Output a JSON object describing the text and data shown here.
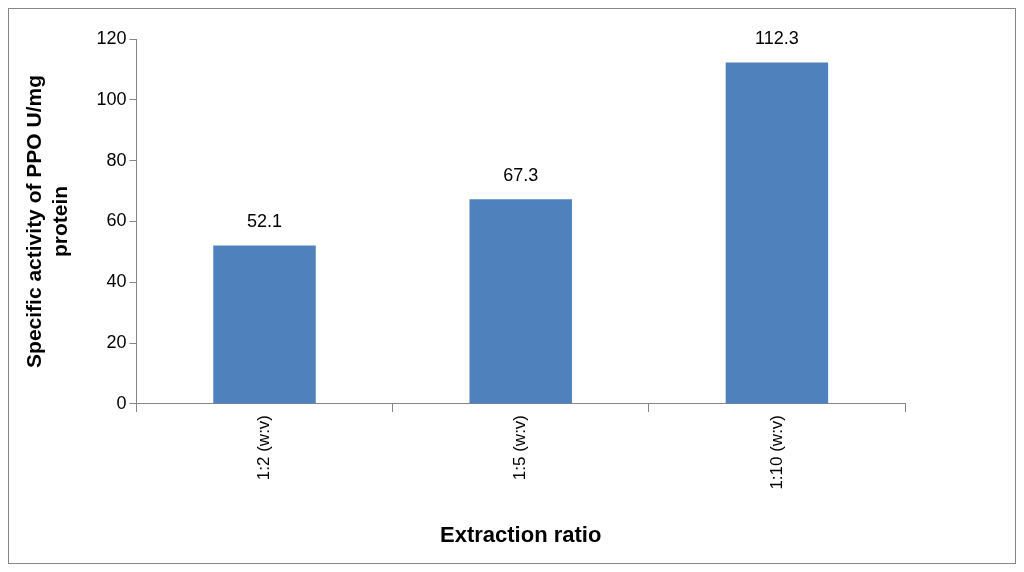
{
  "chart_data": {
    "type": "bar",
    "xlabel": "Extraction ratio",
    "ylabel": "Specific activity of PPO U/mg protein",
    "categories": [
      "1:2 (w:v)",
      "1:5 (w:v)",
      "1:10 (w:v)"
    ],
    "values": [
      52.1,
      67.3,
      112.3
    ],
    "color": "#4f81bd",
    "ylim": [
      0,
      120
    ],
    "yticks": [
      0,
      20,
      40,
      60,
      80,
      100,
      120
    ],
    "grid": false,
    "legend": false,
    "data_labels": true
  }
}
